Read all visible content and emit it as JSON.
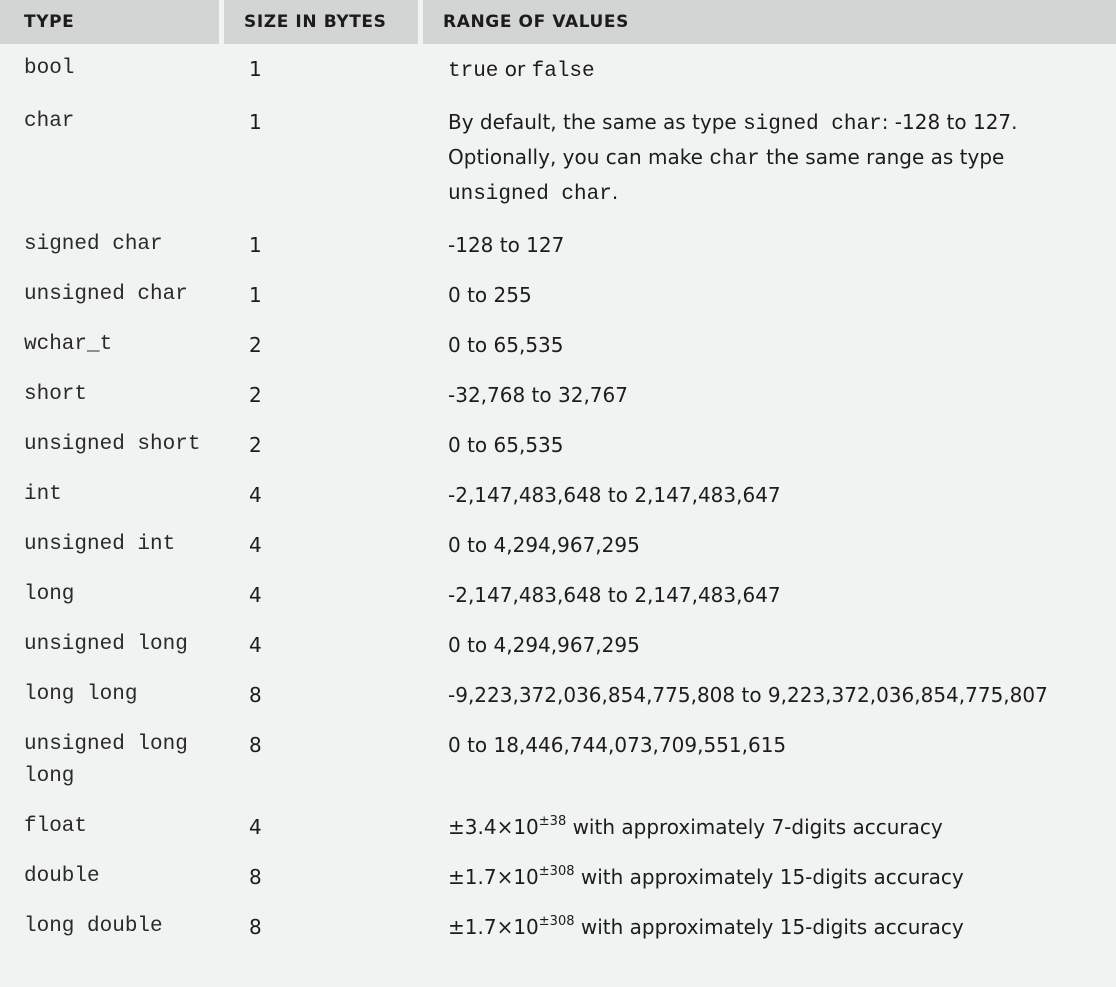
{
  "headers": {
    "type": "TYPE",
    "size": "SIZE IN BYTES",
    "range": "RANGE OF VALUES"
  },
  "rows": [
    {
      "type": "bool",
      "size": "1",
      "range_parts": [
        {
          "mono": true,
          "text": "true"
        },
        {
          "mono": false,
          "text": " or "
        },
        {
          "mono": true,
          "text": "false"
        }
      ]
    },
    {
      "type": "char",
      "size": "1",
      "range_parts": [
        {
          "mono": false,
          "text": "By default, the same as type "
        },
        {
          "mono": true,
          "text": "signed char"
        },
        {
          "mono": false,
          "text": ": -128 to 127. Optionally, you can make "
        },
        {
          "mono": true,
          "text": "char"
        },
        {
          "mono": false,
          "text": " the same range as type "
        },
        {
          "mono": true,
          "text": "unsigned char"
        },
        {
          "mono": false,
          "text": "."
        }
      ]
    },
    {
      "type": "signed char",
      "size": "1",
      "range": "-128 to 127"
    },
    {
      "type": "unsigned char",
      "size": "1",
      "range": "0 to 255"
    },
    {
      "type": "wchar_t",
      "size": "2",
      "range": "0 to 65,535"
    },
    {
      "type": "short",
      "size": "2",
      "range": "-32,768 to 32,767"
    },
    {
      "type": "unsigned short",
      "size": "2",
      "range": "0 to 65,535"
    },
    {
      "type": "int",
      "size": "4",
      "range": "-2,147,483,648 to 2,147,483,647"
    },
    {
      "type": "unsigned int",
      "size": "4",
      "range": "0 to 4,294,967,295"
    },
    {
      "type": "long",
      "size": "4",
      "range": "-2,147,483,648 to 2,147,483,647"
    },
    {
      "type": "unsigned long",
      "size": "4",
      "range": "0 to 4,294,967,295"
    },
    {
      "type": "long long",
      "size": "8",
      "range": "-9,223,372,036,854,775,808 to 9,223,372,036,854,775,807"
    },
    {
      "type": "unsigned long long",
      "size": "8",
      "range": "0 to 18,446,744,073,709,551,615"
    },
    {
      "type": "float",
      "size": "4",
      "range_base": "±3.4×10",
      "range_exp": "±38",
      "range_tail": " with approximately 7-digits accuracy"
    },
    {
      "type": "double",
      "size": "8",
      "range_base": "±1.7×10",
      "range_exp": "±308",
      "range_tail": " with approximately 15-digits accuracy"
    },
    {
      "type": "long double",
      "size": "8",
      "range_base": "±1.7×10",
      "range_exp": "±308",
      "range_tail": " with approximately 15-digits accuracy"
    }
  ]
}
